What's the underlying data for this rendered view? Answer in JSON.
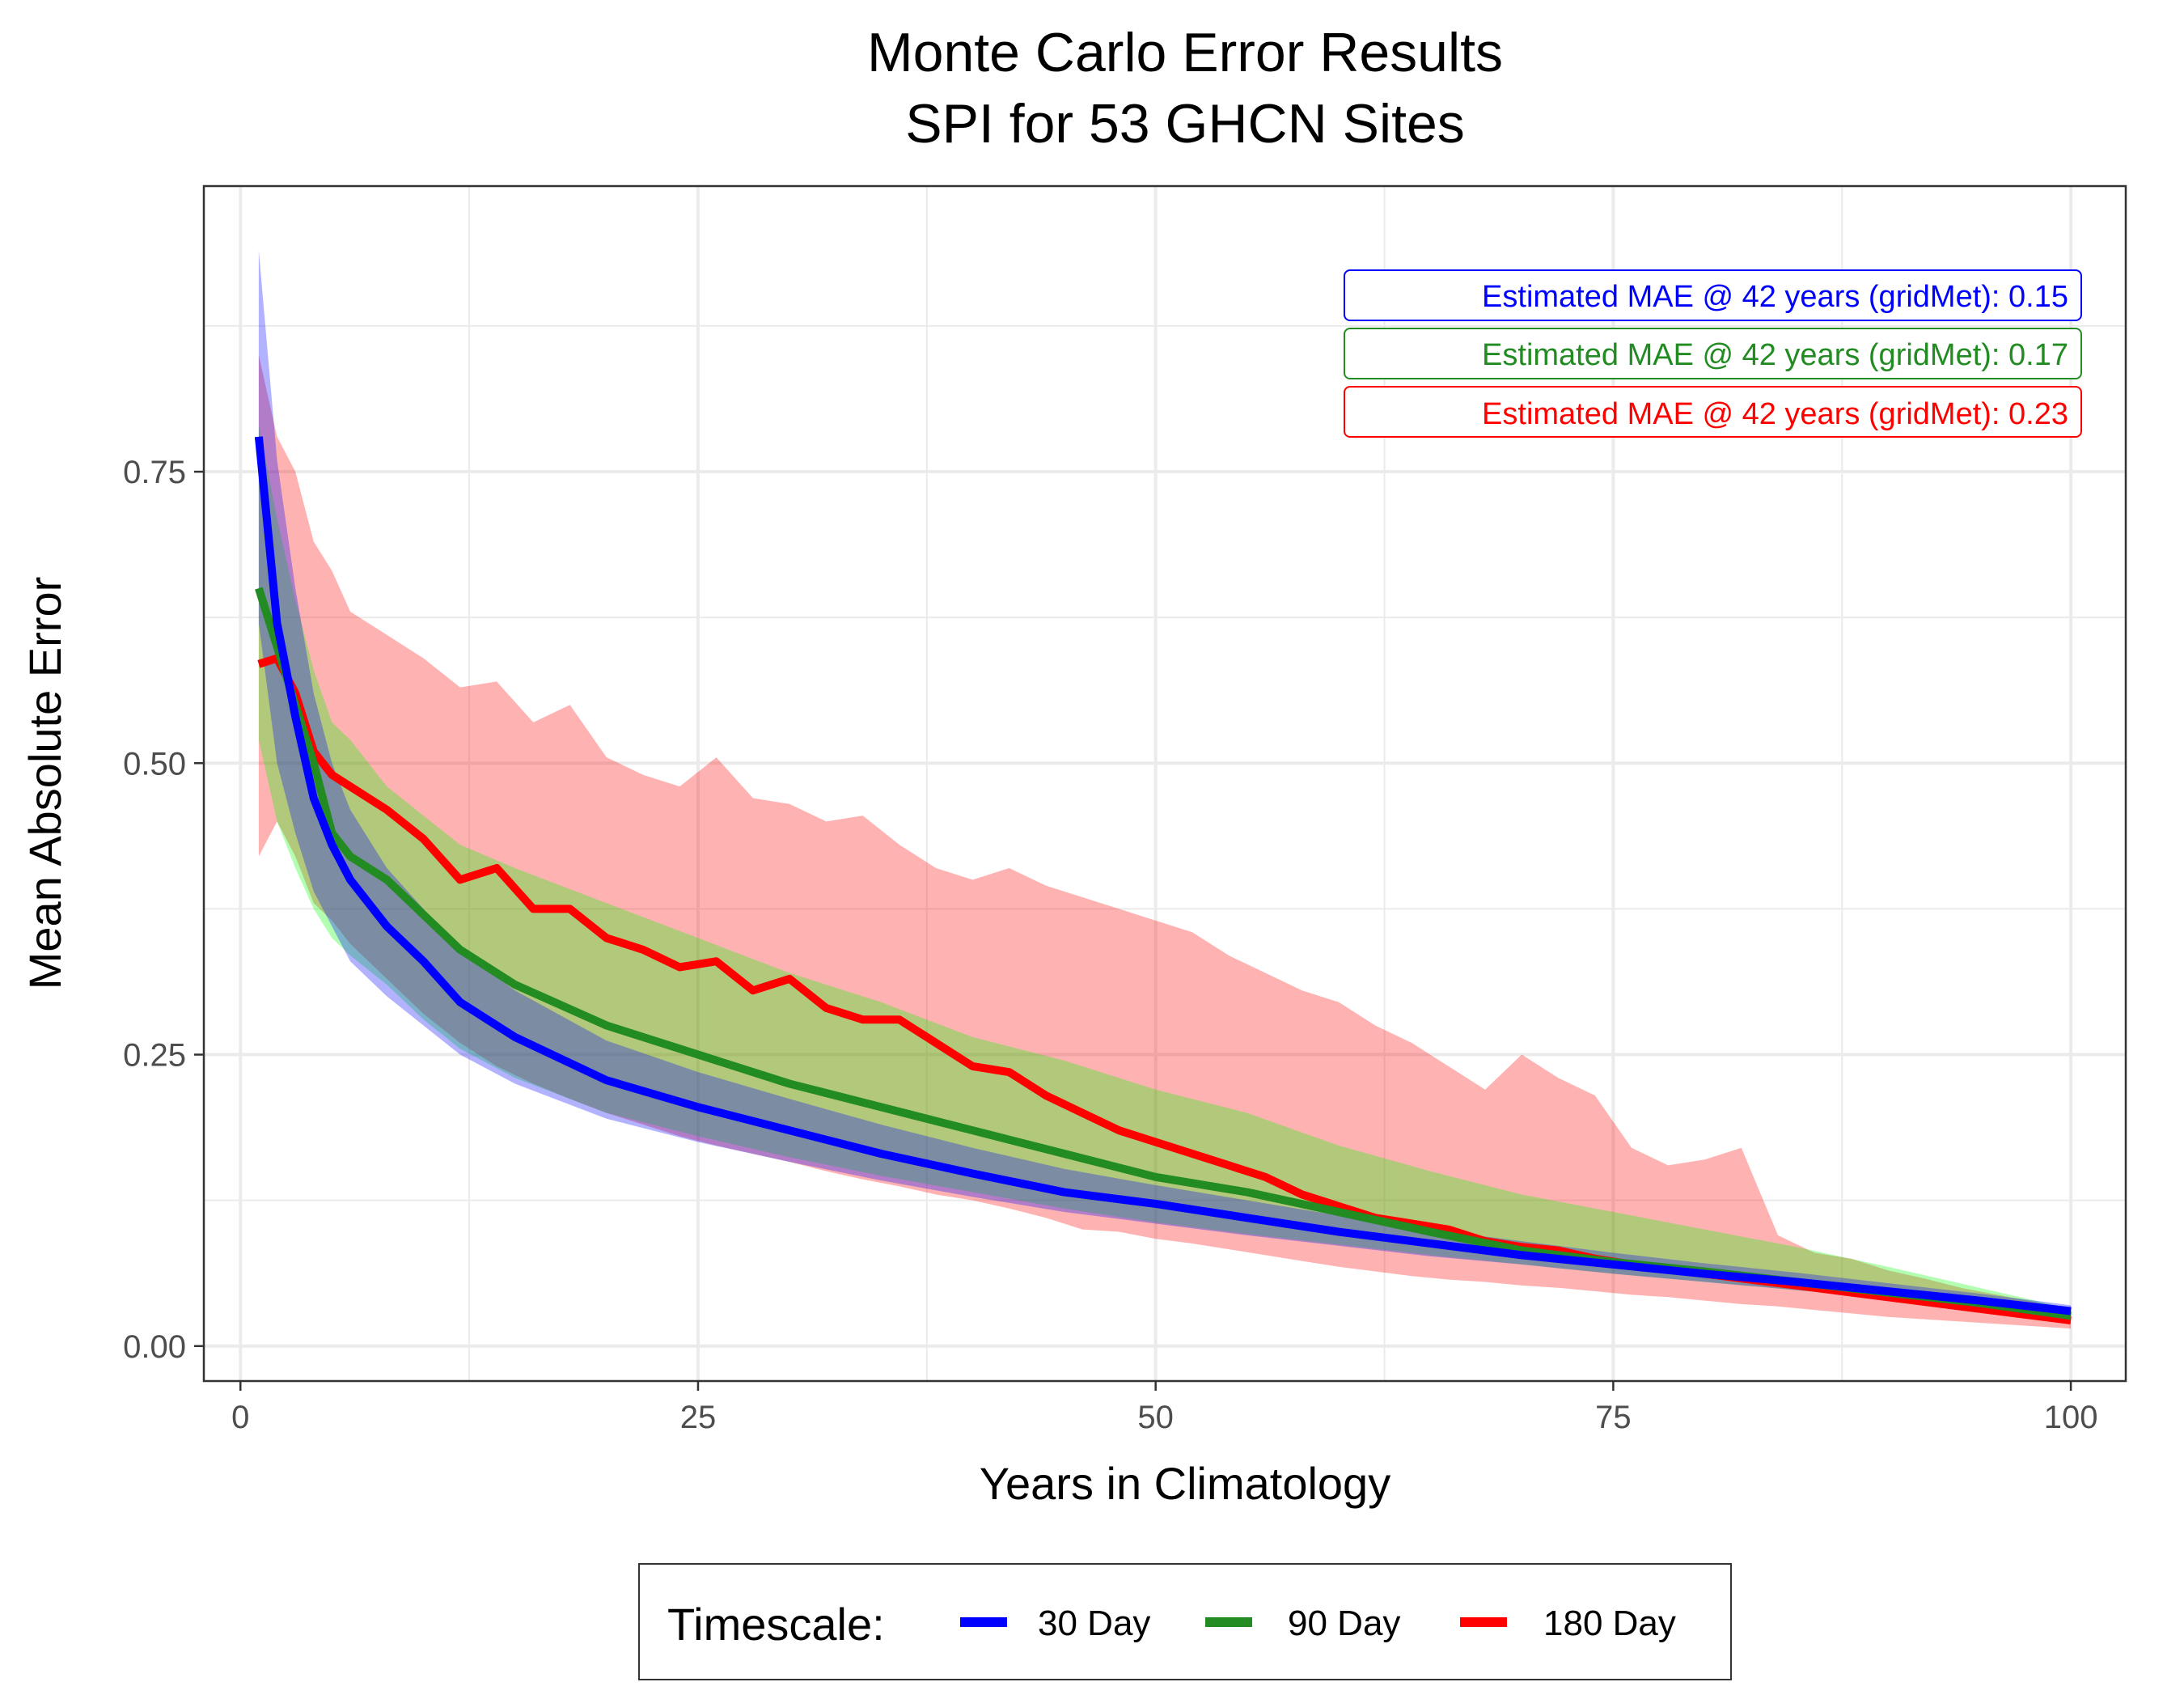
{
  "chart_data": {
    "type": "line",
    "title": [
      "Monte Carlo Error Results",
      "SPI for 53 GHCN Sites"
    ],
    "xlabel": "Years in Climatology",
    "ylabel": "Mean Absolute Error",
    "xlim": [
      -2,
      103
    ],
    "ylim": [
      -0.03,
      0.995
    ],
    "x_ticks": [
      0,
      25,
      50,
      75,
      100
    ],
    "x_tick_labels": [
      "0",
      "25",
      "50",
      "75",
      "100"
    ],
    "y_ticks": [
      0,
      0.25,
      0.5,
      0.75
    ],
    "y_tick_labels": [
      "0.00",
      "0.25",
      "0.50",
      "0.75"
    ],
    "grid": true,
    "legend": {
      "title": "Timescale:",
      "position": "bottom",
      "entries": [
        "30 Day",
        "90 Day",
        "180 Day"
      ]
    },
    "annotations": [
      {
        "text": "Estimated MAE @ 42 years (gridMet): 0.15",
        "color": "#0000ff"
      },
      {
        "text": "Estimated MAE @ 42 years (gridMet): 0.17",
        "color": "#228b22"
      },
      {
        "text": "Estimated MAE @ 42 years (gridMet): 0.23",
        "color": "#ff0000"
      }
    ],
    "series": [
      {
        "name": "30 Day",
        "color": "#0000ff",
        "band_color": "#0000ff",
        "x": [
          1,
          2,
          3,
          4,
          5,
          6,
          8,
          10,
          12,
          15,
          20,
          25,
          30,
          35,
          40,
          45,
          50,
          55,
          60,
          65,
          70,
          75,
          80,
          85,
          90,
          95,
          100
        ],
        "mean": [
          0.78,
          0.62,
          0.54,
          0.47,
          0.43,
          0.4,
          0.36,
          0.33,
          0.295,
          0.265,
          0.228,
          0.205,
          0.185,
          0.165,
          0.148,
          0.132,
          0.122,
          0.11,
          0.098,
          0.088,
          0.078,
          0.07,
          0.062,
          0.055,
          0.047,
          0.039,
          0.03
        ],
        "low": [
          0.62,
          0.5,
          0.44,
          0.39,
          0.36,
          0.33,
          0.3,
          0.275,
          0.25,
          0.225,
          0.195,
          0.175,
          0.158,
          0.142,
          0.128,
          0.115,
          0.105,
          0.095,
          0.086,
          0.077,
          0.07,
          0.062,
          0.055,
          0.048,
          0.041,
          0.034,
          0.026
        ],
        "high": [
          0.94,
          0.76,
          0.65,
          0.56,
          0.5,
          0.46,
          0.41,
          0.375,
          0.34,
          0.305,
          0.262,
          0.235,
          0.212,
          0.19,
          0.17,
          0.152,
          0.138,
          0.125,
          0.112,
          0.1,
          0.09,
          0.08,
          0.071,
          0.063,
          0.054,
          0.045,
          0.035
        ]
      },
      {
        "name": "90 Day",
        "color": "#228b22",
        "band_color": "#00ff00",
        "x": [
          1,
          2,
          3,
          4,
          5,
          6,
          8,
          10,
          12,
          15,
          20,
          25,
          30,
          35,
          40,
          45,
          50,
          55,
          60,
          65,
          70,
          75,
          80,
          85,
          90,
          95,
          100
        ],
        "mean": [
          0.65,
          0.6,
          0.55,
          0.5,
          0.44,
          0.42,
          0.4,
          0.37,
          0.34,
          0.31,
          0.275,
          0.25,
          0.225,
          0.205,
          0.185,
          0.165,
          0.145,
          0.132,
          0.115,
          0.098,
          0.082,
          0.072,
          0.064,
          0.055,
          0.046,
          0.037,
          0.026
        ],
        "low": [
          0.52,
          0.45,
          0.41,
          0.375,
          0.35,
          0.335,
          0.31,
          0.28,
          0.255,
          0.23,
          0.2,
          0.18,
          0.162,
          0.146,
          0.132,
          0.118,
          0.106,
          0.096,
          0.087,
          0.078,
          0.07,
          0.062,
          0.055,
          0.048,
          0.04,
          0.032,
          0.022
        ],
        "high": [
          0.79,
          0.71,
          0.64,
          0.58,
          0.535,
          0.52,
          0.48,
          0.455,
          0.43,
          0.41,
          0.38,
          0.35,
          0.32,
          0.295,
          0.265,
          0.245,
          0.22,
          0.2,
          0.172,
          0.15,
          0.13,
          0.115,
          0.1,
          0.085,
          0.068,
          0.05,
          0.032
        ]
      },
      {
        "name": "180 Day",
        "color": "#ff0000",
        "band_color": "#ff0000",
        "x": [
          1,
          2,
          3,
          4,
          5,
          6,
          8,
          10,
          12,
          14,
          16,
          18,
          20,
          22,
          24,
          26,
          28,
          30,
          32,
          34,
          36,
          38,
          40,
          42,
          44,
          46,
          48,
          50,
          52,
          54,
          56,
          58,
          60,
          62,
          64,
          66,
          68,
          70,
          72,
          74,
          76,
          78,
          80,
          82,
          84,
          86,
          88,
          90,
          92,
          94,
          96,
          98,
          100
        ],
        "mean": [
          0.585,
          0.59,
          0.56,
          0.51,
          0.49,
          0.48,
          0.46,
          0.435,
          0.4,
          0.41,
          0.375,
          0.375,
          0.35,
          0.34,
          0.325,
          0.33,
          0.305,
          0.315,
          0.29,
          0.28,
          0.28,
          0.26,
          0.24,
          0.235,
          0.215,
          0.2,
          0.185,
          0.175,
          0.165,
          0.155,
          0.145,
          0.13,
          0.12,
          0.11,
          0.105,
          0.1,
          0.09,
          0.085,
          0.082,
          0.075,
          0.07,
          0.066,
          0.062,
          0.058,
          0.054,
          0.05,
          0.046,
          0.042,
          0.038,
          0.034,
          0.03,
          0.026,
          0.022
        ],
        "low": [
          0.42,
          0.45,
          0.42,
          0.38,
          0.365,
          0.345,
          0.315,
          0.285,
          0.26,
          0.24,
          0.225,
          0.212,
          0.2,
          0.19,
          0.18,
          0.172,
          0.165,
          0.158,
          0.15,
          0.143,
          0.137,
          0.13,
          0.125,
          0.118,
          0.11,
          0.1,
          0.098,
          0.092,
          0.088,
          0.083,
          0.078,
          0.073,
          0.068,
          0.064,
          0.06,
          0.057,
          0.055,
          0.052,
          0.05,
          0.047,
          0.044,
          0.042,
          0.039,
          0.036,
          0.034,
          0.031,
          0.028,
          0.025,
          0.023,
          0.021,
          0.019,
          0.017,
          0.015
        ],
        "high": [
          0.85,
          0.78,
          0.75,
          0.69,
          0.665,
          0.63,
          0.61,
          0.59,
          0.565,
          0.57,
          0.535,
          0.55,
          0.505,
          0.49,
          0.48,
          0.505,
          0.47,
          0.465,
          0.45,
          0.455,
          0.43,
          0.41,
          0.4,
          0.41,
          0.395,
          0.385,
          0.375,
          0.365,
          0.355,
          0.335,
          0.32,
          0.305,
          0.295,
          0.275,
          0.26,
          0.24,
          0.22,
          0.25,
          0.23,
          0.215,
          0.17,
          0.155,
          0.16,
          0.17,
          0.095,
          0.08,
          0.075,
          0.065,
          0.058,
          0.05,
          0.044,
          0.038,
          0.03
        ]
      }
    ]
  }
}
